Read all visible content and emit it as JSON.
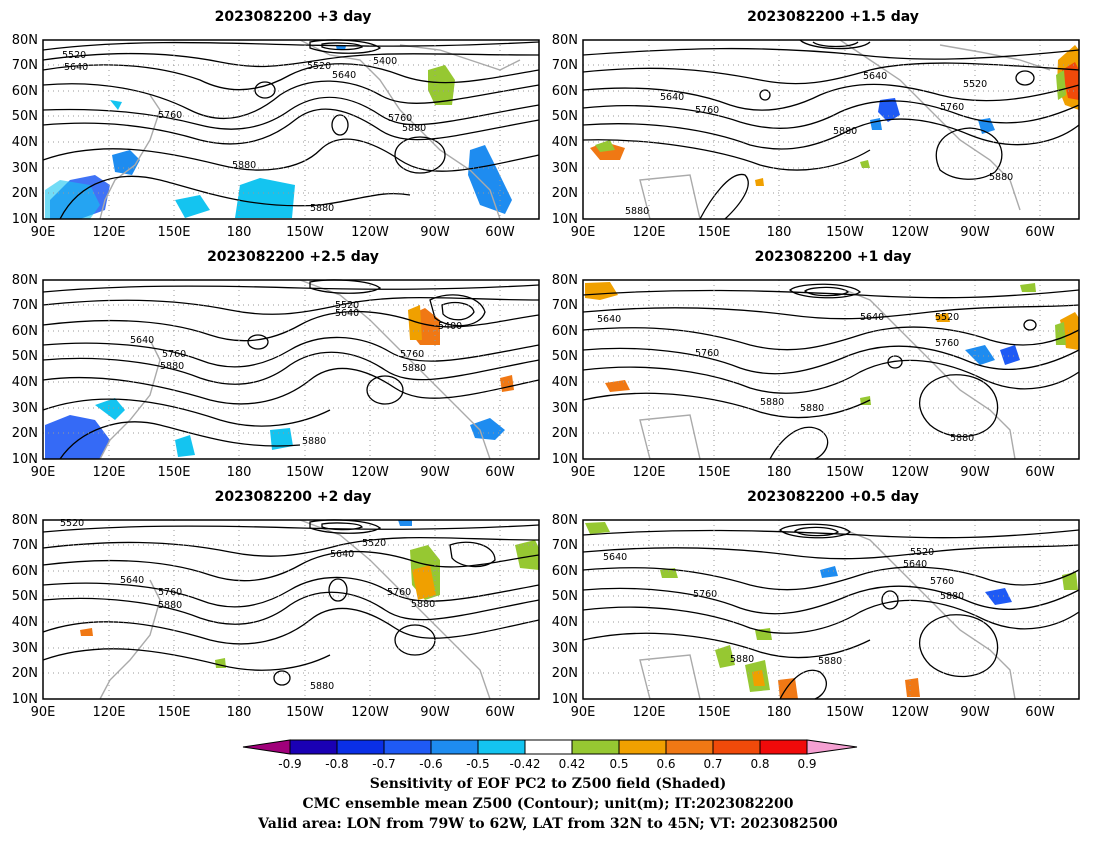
{
  "panels": [
    {
      "title": "2023082200 +3 day"
    },
    {
      "title": "2023082200 +1.5 day"
    },
    {
      "title": "2023082200 +2.5 day"
    },
    {
      "title": "2023082200 +1 day"
    },
    {
      "title": "2023082200 +2 day"
    },
    {
      "title": "2023082200 +0.5 day"
    }
  ],
  "axes": {
    "lon_ticks": [
      "90E",
      "120E",
      "150E",
      "180",
      "150W",
      "120W",
      "90W",
      "60W"
    ],
    "lat_ticks": [
      "10N",
      "20N",
      "30N",
      "40N",
      "50N",
      "60N",
      "70N",
      "80N"
    ]
  },
  "contour_labels": [
    "5400",
    "5520",
    "5640",
    "5760",
    "5880"
  ],
  "colorbar": {
    "ticks": [
      "-0.9",
      "-0.8",
      "-0.7",
      "-0.6",
      "-0.5",
      "-0.42",
      "0.42",
      "0.5",
      "0.6",
      "0.7",
      "0.8",
      "0.9"
    ],
    "colors": [
      "#a0007a",
      "#1a00b4",
      "#0a2fe6",
      "#1f5af5",
      "#1e8cf0",
      "#14c4f0",
      "#ffffff",
      "#96c832",
      "#f0a000",
      "#f07814",
      "#f04a0a",
      "#f00a0a",
      "#f5a0d2"
    ]
  },
  "caption": {
    "line1": "Sensitivity of EOF PC2 to Z500 field (Shaded)",
    "line2": "CMC ensemble mean Z500 (Contour); unit(m); IT:2023082200",
    "line3": "Valid area: LON from 79W to 62W, LAT from 32N to 45N; VT: 2023082500"
  }
}
